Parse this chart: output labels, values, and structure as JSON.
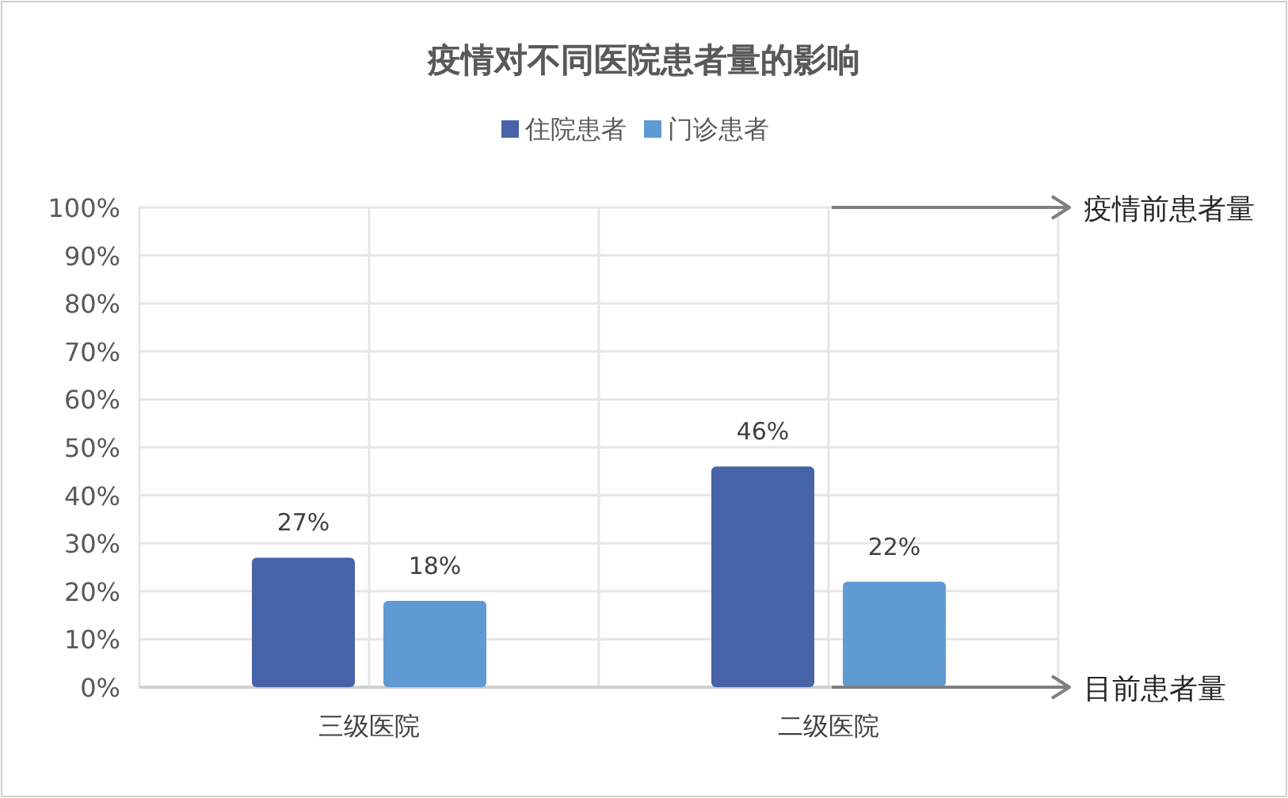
{
  "chart_data": {
    "type": "bar",
    "title": "疫情对不同医院患者量的影响",
    "categories": [
      "三级医院",
      "二级医院"
    ],
    "series": [
      {
        "name": "住院患者",
        "color": "#4864a8",
        "values": [
          27,
          46
        ]
      },
      {
        "name": "门诊患者",
        "color": "#5f9bd2",
        "values": [
          18,
          22
        ]
      }
    ],
    "ylim": [
      0,
      100
    ],
    "yticks": [
      {
        "value": 0,
        "label": "0%"
      },
      {
        "value": 10,
        "label": "10%"
      },
      {
        "value": 20,
        "label": "20%"
      },
      {
        "value": 30,
        "label": "30%"
      },
      {
        "value": 40,
        "label": "40%"
      },
      {
        "value": 50,
        "label": "50%"
      },
      {
        "value": 60,
        "label": "60%"
      },
      {
        "value": 70,
        "label": "70%"
      },
      {
        "value": 80,
        "label": "80%"
      },
      {
        "value": 90,
        "label": "90%"
      },
      {
        "value": 100,
        "label": "100%"
      }
    ],
    "value_labels": [
      "27%",
      "46%",
      "18%",
      "22%"
    ],
    "grid": true,
    "legend": "top",
    "ref_lines": [
      {
        "axis": "y",
        "value": 100,
        "label": "疫情前患者量",
        "color": "#7f7f7f"
      },
      {
        "axis": "y",
        "value": 0,
        "label": "目前患者量",
        "color": "#7f7f7f"
      }
    ]
  }
}
